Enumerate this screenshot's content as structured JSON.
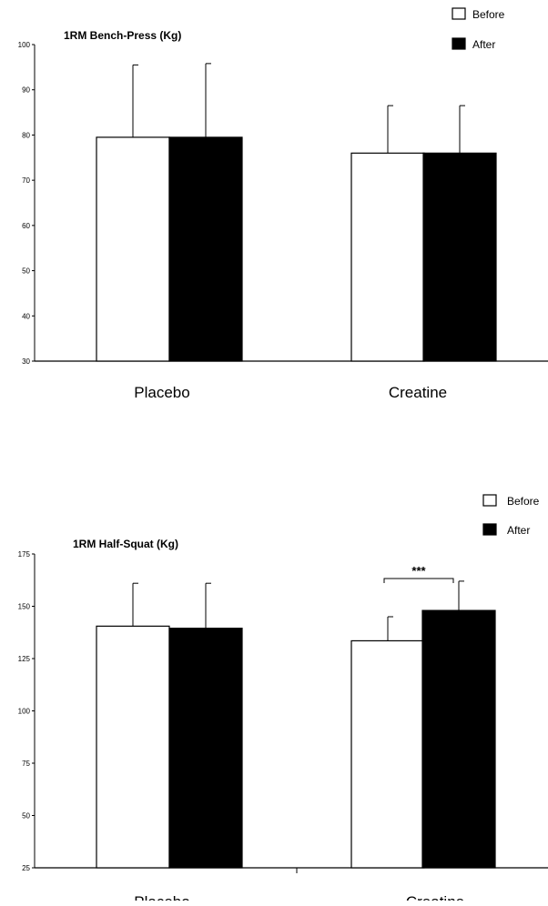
{
  "chart_data": [
    {
      "type": "bar",
      "title": "1RM Bench-Press (Kg)",
      "xlabel": "",
      "ylabel": "",
      "categories": [
        "Placebo",
        "Creatine"
      ],
      "series": [
        {
          "name": "Before",
          "values": [
            79.5,
            76
          ],
          "errors": [
            16,
            10.5
          ],
          "color": "#ffffff"
        },
        {
          "name": "After",
          "values": [
            79.5,
            76
          ],
          "errors": [
            16.3,
            10.5
          ],
          "color": "#000000"
        }
      ],
      "ylim": [
        30,
        100
      ],
      "yticks": [
        30,
        40,
        50,
        60,
        70,
        80,
        90,
        100
      ],
      "legend": "top-right",
      "grid": false,
      "annotations": []
    },
    {
      "type": "bar",
      "title": "1RM Half-Squat (Kg)",
      "xlabel": "",
      "ylabel": "",
      "categories": [
        "Placebo",
        "Creatine"
      ],
      "series": [
        {
          "name": "Before",
          "values": [
            140.5,
            133.5
          ],
          "errors": [
            20.5,
            11.5
          ],
          "color": "#ffffff"
        },
        {
          "name": "After",
          "values": [
            139.5,
            148
          ],
          "errors": [
            21.5,
            14
          ],
          "color": "#000000"
        }
      ],
      "ylim": [
        25,
        175
      ],
      "yticks": [
        25,
        50,
        75,
        100,
        125,
        150,
        175
      ],
      "legend": "top-right",
      "grid": false,
      "annotations": [
        {
          "text": "***",
          "category": "Creatine"
        }
      ]
    }
  ]
}
